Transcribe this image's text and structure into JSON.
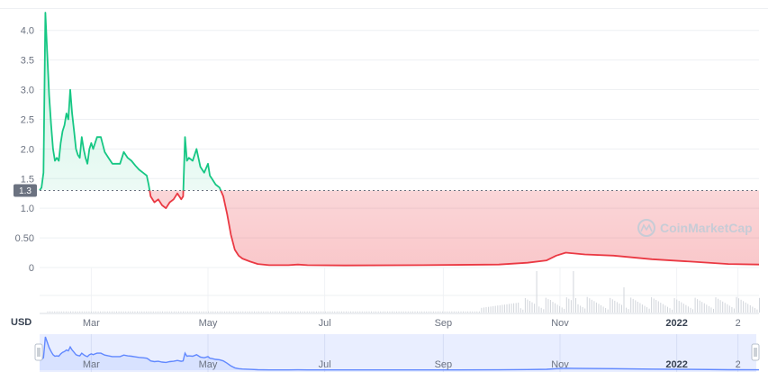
{
  "chart_data": {
    "type": "area",
    "ylabel": "",
    "currency_label": "USD",
    "y_ticks": [
      "4.0",
      "3.5",
      "3.0",
      "2.5",
      "2.0",
      "1.5",
      "1.0",
      "0.50",
      "0"
    ],
    "y_tick_values": [
      4.0,
      3.5,
      3.0,
      2.5,
      2.0,
      1.5,
      1.0,
      0.5,
      0
    ],
    "ylim": [
      0,
      4.3
    ],
    "reference_price": 1.3,
    "reference_label": "1.3",
    "x_ticks": [
      {
        "label": "Mar",
        "x": 27,
        "bold": false
      },
      {
        "label": "May",
        "x": 88,
        "bold": false
      },
      {
        "label": "Jul",
        "x": 149,
        "bold": false
      },
      {
        "label": "Sep",
        "x": 211,
        "bold": false
      },
      {
        "label": "Nov",
        "x": 272,
        "bold": false
      },
      {
        "label": "2022",
        "x": 333,
        "bold": true
      },
      {
        "label": "2",
        "x": 365,
        "bold": false
      }
    ],
    "xlim": [
      0,
      376
    ],
    "x_unit": "days since Feb 2",
    "above_color": "#16c784",
    "below_color": "#ea3943",
    "navigator_color": "#6188ff",
    "grid": true,
    "series": [
      {
        "name": "",
        "points": [
          [
            0,
            1.3
          ],
          [
            1,
            1.35
          ],
          [
            2,
            1.6
          ],
          [
            3,
            4.3
          ],
          [
            4,
            3.6
          ],
          [
            5,
            2.9
          ],
          [
            6,
            2.4
          ],
          [
            7,
            2.0
          ],
          [
            8,
            1.8
          ],
          [
            9,
            1.85
          ],
          [
            10,
            1.8
          ],
          [
            11,
            2.1
          ],
          [
            12,
            2.3
          ],
          [
            13,
            2.4
          ],
          [
            14,
            2.6
          ],
          [
            15,
            2.5
          ],
          [
            16,
            3.0
          ],
          [
            17,
            2.6
          ],
          [
            18,
            2.3
          ],
          [
            19,
            2.0
          ],
          [
            20,
            1.9
          ],
          [
            21,
            1.85
          ],
          [
            22,
            2.2
          ],
          [
            23,
            2.0
          ],
          [
            24,
            1.85
          ],
          [
            25,
            1.75
          ],
          [
            26,
            2.0
          ],
          [
            27,
            2.1
          ],
          [
            28,
            2.0
          ],
          [
            29,
            2.1
          ],
          [
            30,
            2.2
          ],
          [
            32,
            2.2
          ],
          [
            34,
            1.95
          ],
          [
            36,
            1.85
          ],
          [
            38,
            1.75
          ],
          [
            40,
            1.75
          ],
          [
            42,
            1.75
          ],
          [
            44,
            1.95
          ],
          [
            46,
            1.85
          ],
          [
            48,
            1.8
          ],
          [
            50,
            1.72
          ],
          [
            52,
            1.65
          ],
          [
            54,
            1.6
          ],
          [
            56,
            1.55
          ],
          [
            57,
            1.4
          ],
          [
            58,
            1.2
          ],
          [
            60,
            1.1
          ],
          [
            62,
            1.15
          ],
          [
            64,
            1.05
          ],
          [
            66,
            1.0
          ],
          [
            68,
            1.1
          ],
          [
            70,
            1.15
          ],
          [
            72,
            1.25
          ],
          [
            74,
            1.15
          ],
          [
            75,
            1.2
          ],
          [
            76,
            2.2
          ],
          [
            77,
            1.8
          ],
          [
            78,
            1.85
          ],
          [
            80,
            1.8
          ],
          [
            82,
            2.0
          ],
          [
            84,
            1.7
          ],
          [
            86,
            1.6
          ],
          [
            88,
            1.75
          ],
          [
            89,
            1.55
          ],
          [
            90,
            1.5
          ],
          [
            92,
            1.4
          ],
          [
            94,
            1.35
          ],
          [
            96,
            1.2
          ],
          [
            98,
            0.9
          ],
          [
            100,
            0.55
          ],
          [
            102,
            0.3
          ],
          [
            104,
            0.2
          ],
          [
            106,
            0.15
          ],
          [
            110,
            0.1
          ],
          [
            114,
            0.06
          ],
          [
            120,
            0.04
          ],
          [
            130,
            0.04
          ],
          [
            135,
            0.05
          ],
          [
            140,
            0.04
          ],
          [
            160,
            0.035
          ],
          [
            200,
            0.04
          ],
          [
            240,
            0.05
          ],
          [
            255,
            0.08
          ],
          [
            265,
            0.12
          ],
          [
            270,
            0.2
          ],
          [
            275,
            0.25
          ],
          [
            285,
            0.22
          ],
          [
            300,
            0.2
          ],
          [
            320,
            0.14
          ],
          [
            340,
            0.1
          ],
          [
            360,
            0.06
          ],
          [
            376,
            0.05
          ]
        ]
      }
    ]
  },
  "branding": {
    "watermark": "CoinMarketCap"
  }
}
